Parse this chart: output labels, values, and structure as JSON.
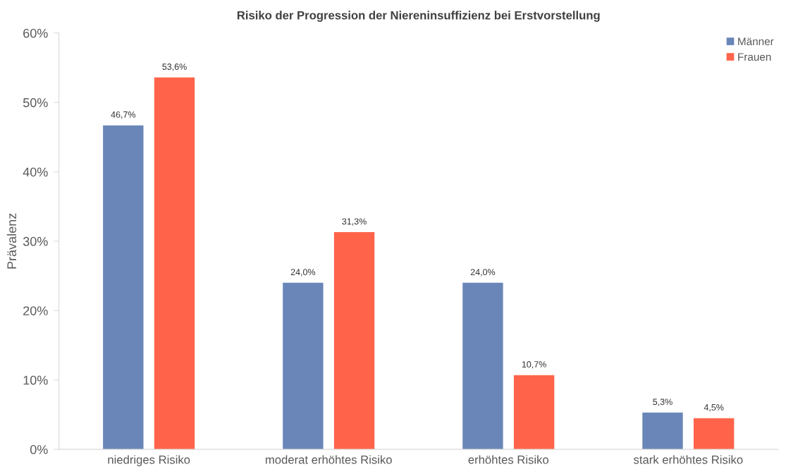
{
  "chart_data": {
    "type": "bar",
    "title": "Risiko der Progression der Niereninsuffizienz bei Erstvorstellung",
    "ylabel": "Prävalenz",
    "categories": [
      "niedriges Risiko",
      "moderat erhöhtes Risiko",
      "erhöhtes Risiko",
      "stark erhöhtes Risiko"
    ],
    "series": [
      {
        "name": "Männer",
        "color": "#6a86b8",
        "values": [
          46.7,
          24.0,
          24.0,
          5.3
        ],
        "value_labels": [
          "46,7%",
          "24,0%",
          "24,0%",
          "5,3%"
        ]
      },
      {
        "name": "Frauen",
        "color": "#ff644a",
        "values": [
          53.6,
          31.3,
          10.7,
          4.5
        ],
        "value_labels": [
          "53,6%",
          "31,3%",
          "10,7%",
          "4,5%"
        ]
      }
    ],
    "ylim": [
      0,
      60
    ],
    "yticks": [
      {
        "value": 0,
        "label": "0%"
      },
      {
        "value": 10,
        "label": "10%"
      },
      {
        "value": 20,
        "label": "20%"
      },
      {
        "value": 30,
        "label": "30%"
      },
      {
        "value": 40,
        "label": "40%"
      },
      {
        "value": 50,
        "label": "50%"
      },
      {
        "value": 60,
        "label": "60%"
      }
    ],
    "grid": false,
    "legend": "top right"
  }
}
